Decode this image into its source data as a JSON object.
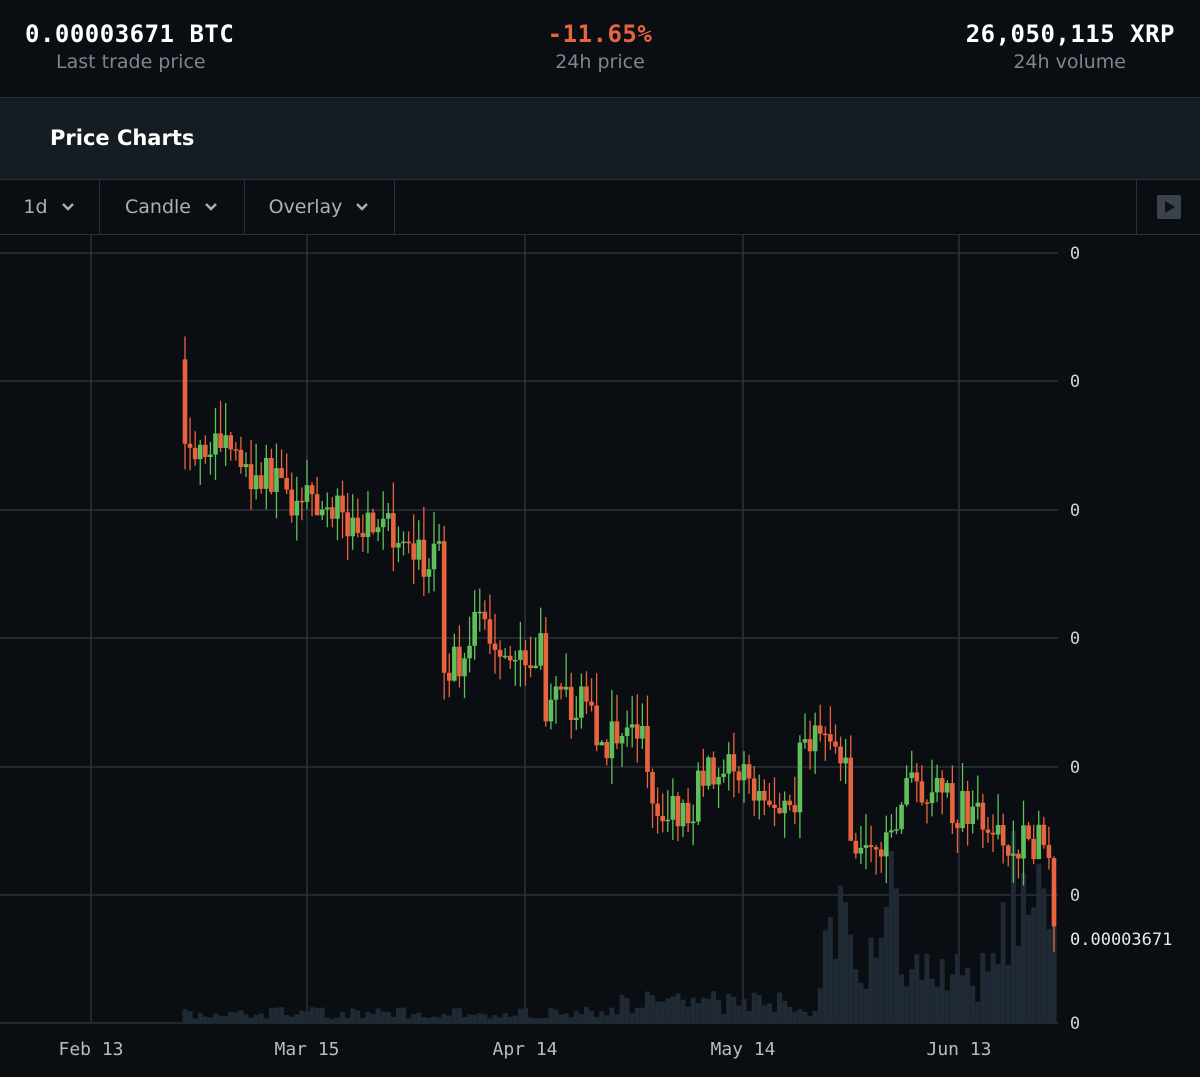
{
  "stats": {
    "last_trade": {
      "value": "0.00003671 BTC",
      "label": "Last trade price"
    },
    "change_24h": {
      "value": "-11.65%",
      "label": "24h price"
    },
    "volume_24h": {
      "value": "26,050,115 XRP",
      "label": "24h volume"
    }
  },
  "section": {
    "title": "Price Charts"
  },
  "toolbar": {
    "interval": "1d",
    "chart_type": "Candle",
    "overlay": "Overlay"
  },
  "colors": {
    "down": "#e8643e",
    "up": "#5fbf5a",
    "volume": "#1f2a35",
    "grid": "#2b323a",
    "accent_negative": "#e8643e"
  },
  "icons": {
    "dropdown": "chevron-down-icon",
    "play": "play-icon"
  },
  "chart_data": {
    "type": "candlestick",
    "x_ticks": [
      "Feb 13",
      "Mar 15",
      "Apr 14",
      "May 14",
      "Jun 13"
    ],
    "y_ticks": [
      "0",
      "0",
      "0",
      "0",
      "0",
      "0",
      "0"
    ],
    "last_price_label": "0.00003671",
    "price_series": [
      [
        0,
        5.35e-05,
        5.1e-05
      ],
      [
        10,
        5.1e-05,
        5.02e-05
      ],
      [
        20,
        4.99e-05,
        4.93e-05
      ],
      [
        30,
        4.9e-05,
        4.87e-05
      ],
      [
        40,
        4.87e-05,
        4.76e-05
      ],
      [
        50,
        4.76e-05,
        4.44e-05
      ],
      [
        55,
        4.46e-05,
        4.54e-05
      ],
      [
        60,
        4.55e-05,
        4.49e-05
      ],
      [
        70,
        4.49e-05,
        4.33e-05
      ],
      [
        80,
        4.32e-05,
        4.23e-05
      ],
      [
        90,
        4.22e-05,
        4.09e-05
      ],
      [
        100,
        3.95e-05,
        4.12e-05
      ],
      [
        110,
        4.13e-05,
        4.06e-05
      ],
      [
        120,
        4.05e-05,
        4.21e-05
      ],
      [
        130,
        4.2e-05,
        3.93e-05
      ],
      [
        140,
        3.93e-05,
        4.09e-05
      ],
      [
        150,
        4.08e-05,
        4.02e-05
      ],
      [
        160,
        4e-05,
        3.92e-05
      ],
      [
        165,
        3.92e-05,
        3.92e-05
      ],
      [
        171,
        3.92e-05,
        3.67e-05
      ]
    ]
  }
}
